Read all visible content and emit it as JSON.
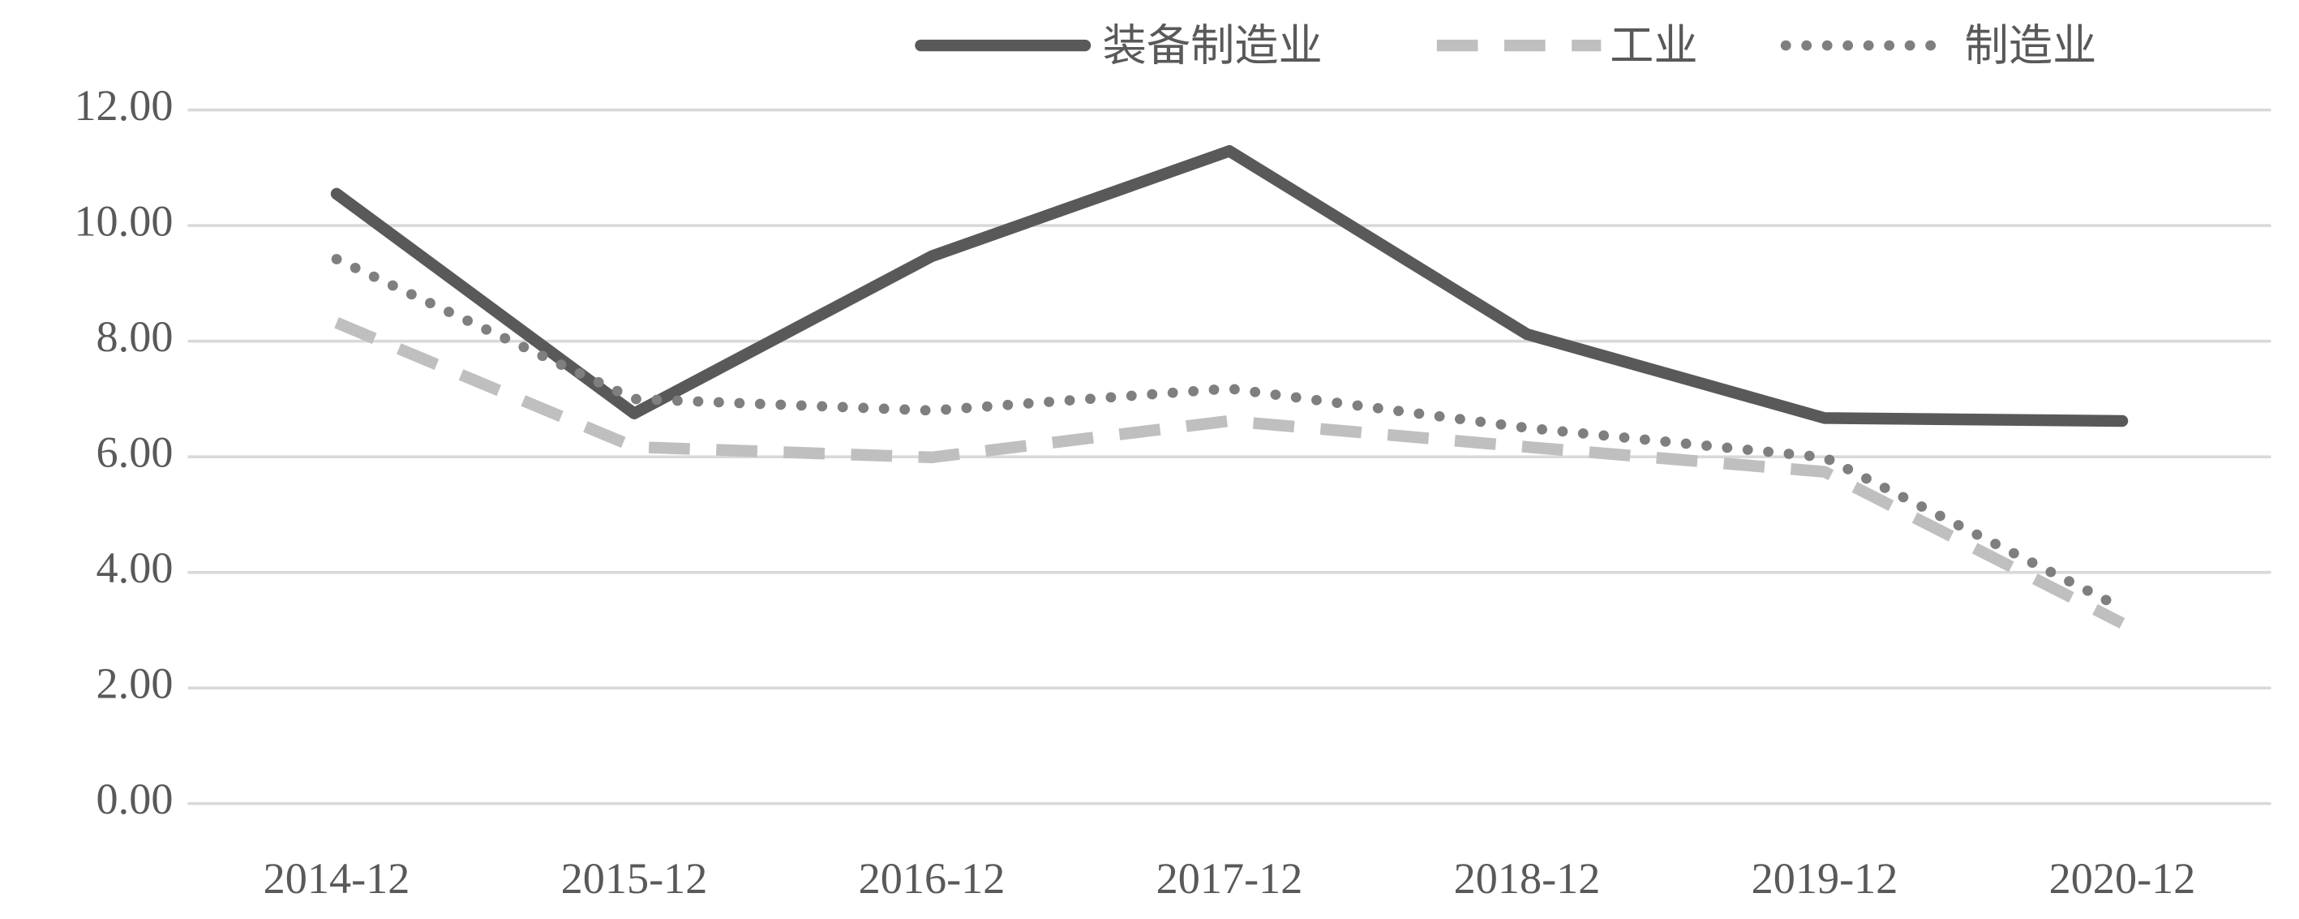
{
  "chart_data": {
    "type": "line",
    "categories": [
      "2014-12",
      "2015-12",
      "2016-12",
      "2017-12",
      "2018-12",
      "2019-12",
      "2020-12"
    ],
    "series": [
      {
        "name": "装备制造业",
        "color": "#595959",
        "dash": "solid",
        "values": [
          10.55,
          6.75,
          9.47,
          11.29,
          8.12,
          6.67,
          6.62
        ]
      },
      {
        "name": "工业",
        "color": "#bfbfbf",
        "dash": "dashed",
        "values": [
          8.32,
          6.17,
          5.99,
          6.62,
          6.17,
          5.74,
          3.12
        ]
      },
      {
        "name": "制造业",
        "color": "#7f7f7f",
        "dash": "dotted",
        "values": [
          9.42,
          7.0,
          6.8,
          7.18,
          6.5,
          5.99,
          3.38
        ]
      }
    ],
    "ylim": [
      0,
      12
    ],
    "yticks": [
      {
        "value": 0,
        "label": "0.00"
      },
      {
        "value": 2,
        "label": "2.00"
      },
      {
        "value": 4,
        "label": "4.00"
      },
      {
        "value": 6,
        "label": "6.00"
      },
      {
        "value": 8,
        "label": "8.00"
      },
      {
        "value": 10,
        "label": "10.00"
      },
      {
        "value": 12,
        "label": "12.00"
      }
    ],
    "grid": true,
    "legend": "top"
  }
}
